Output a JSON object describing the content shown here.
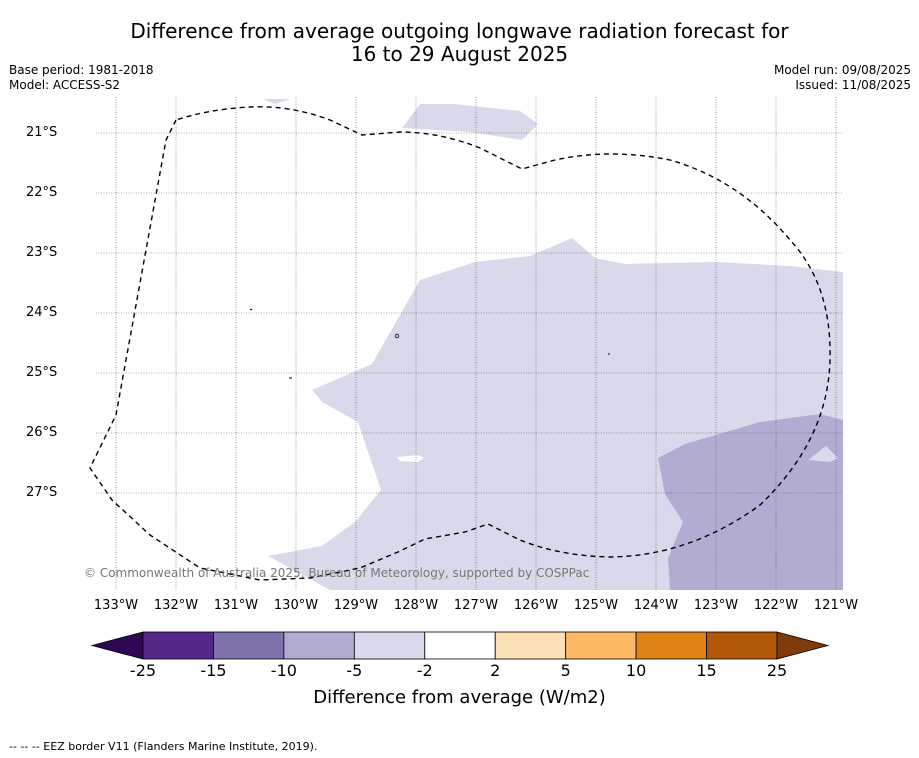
{
  "title_line1": "Difference from average outgoing longwave radiation forecast for",
  "title_line2": "16 to 29 August 2025",
  "base_period": "Base period: 1981-2018",
  "model": "Model: ACCESS-S2",
  "model_run": "Model run: 09/08/2025",
  "issued": "Issued: 11/08/2025",
  "copyright": "© Commonwealth of Australia 2025, Bureau of Meteorology, supported by COSPPac",
  "latitudes": [
    "21°S",
    "22°S",
    "23°S",
    "24°S",
    "25°S",
    "26°S",
    "27°S"
  ],
  "longitudes": [
    "133°W",
    "132°W",
    "131°W",
    "130°W",
    "129°W",
    "128°W",
    "127°W",
    "126°W",
    "125°W",
    "124°W",
    "123°W",
    "122°W",
    "121°W"
  ],
  "colorbar": {
    "label": "Difference from average (W/m2)",
    "ticks": [
      "-25",
      "-15",
      "-10",
      "-5",
      "-2",
      "2",
      "5",
      "10",
      "15",
      "25"
    ],
    "colors": [
      "#2e0854",
      "#542788",
      "#8073ac",
      "#b2abd2",
      "#d8daeb",
      "#ffffff",
      "#fee0b6",
      "#fdb863",
      "#e08214",
      "#b35806",
      "#7f3b08"
    ]
  },
  "footer": "--  --  -- EEZ border V11 (Flanders Marine Institute, 2019)."
}
